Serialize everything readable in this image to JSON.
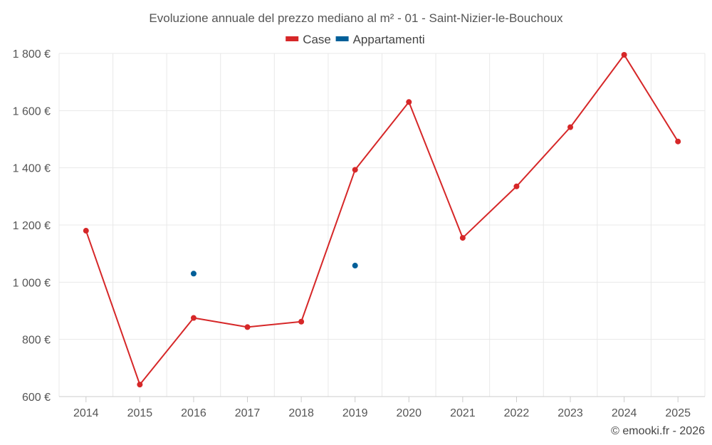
{
  "chart_data": {
    "type": "line",
    "title": "Evoluzione annuale del prezzo mediano al m² - 01 - Saint-Nizier-le-Bouchoux",
    "categories": [
      "2014",
      "2015",
      "2016",
      "2017",
      "2018",
      "2019",
      "2020",
      "2021",
      "2022",
      "2023",
      "2024",
      "2025"
    ],
    "series": [
      {
        "name": "Case",
        "color": "#d62728",
        "values": [
          1180,
          642,
          875,
          843,
          862,
          1393,
          1630,
          1155,
          1335,
          1542,
          1795,
          1492
        ]
      },
      {
        "name": "Appartamenti",
        "color": "#005f99",
        "values": [
          null,
          null,
          1030,
          null,
          null,
          1058,
          null,
          null,
          null,
          null,
          null,
          null
        ]
      }
    ],
    "ylim": [
      600,
      1800
    ],
    "yticks": [
      600,
      800,
      1000,
      1200,
      1400,
      1600,
      1800
    ],
    "ytick_labels": [
      "600 €",
      "800 €",
      "1 000 €",
      "1 200 €",
      "1 400 €",
      "1 600 €",
      "1 800 €"
    ],
    "xlabel": "",
    "ylabel": "",
    "grid": true,
    "legend_position": "top-center"
  },
  "credit": "© emooki.fr - 2026"
}
